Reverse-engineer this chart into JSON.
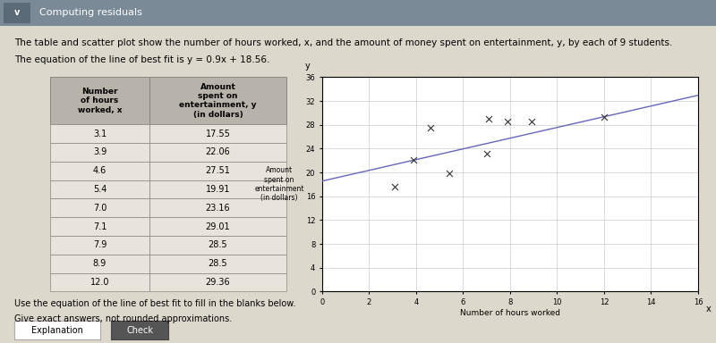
{
  "table_data": {
    "rows": [
      [
        3.1,
        17.55
      ],
      [
        3.9,
        22.06
      ],
      [
        4.6,
        27.51
      ],
      [
        5.4,
        19.91
      ],
      [
        7.0,
        23.16
      ],
      [
        7.1,
        29.01
      ],
      [
        7.9,
        28.5
      ],
      [
        8.9,
        28.5
      ],
      [
        12.0,
        29.36
      ]
    ]
  },
  "scatter": {
    "x": [
      3.1,
      3.9,
      4.6,
      5.4,
      7.0,
      7.1,
      7.9,
      8.9,
      12.0
    ],
    "y": [
      17.55,
      22.06,
      27.51,
      19.91,
      23.16,
      29.01,
      28.5,
      28.5,
      29.36
    ],
    "marker": "x",
    "color": "#333333",
    "markersize": 5
  },
  "bestfit": {
    "slope": 0.9,
    "intercept": 18.56,
    "x_start": 0,
    "x_end": 16,
    "color": "#6666bb",
    "linewidth": 1.0
  },
  "plot": {
    "xlim": [
      0,
      16
    ],
    "ylim": [
      0,
      36
    ],
    "xticks": [
      0,
      2,
      4,
      6,
      8,
      10,
      12,
      14,
      16
    ],
    "yticks": [
      0,
      4,
      8,
      12,
      16,
      20,
      24,
      28,
      32,
      36
    ],
    "xlabel": "Number of hours worked",
    "ylabel_lines": [
      "Amount",
      "spent on",
      "entertainment",
      "(in dollars)"
    ],
    "grid_color": "#cccccc",
    "grid_linewidth": 0.5
  },
  "header": {
    "bar_color": "#7a8a96",
    "chevron_color": "#5a6a76",
    "text": "Computing residuals",
    "text_color": "white",
    "chevron_label": "v"
  },
  "text": {
    "top_line": "The table and scatter plot show the number of hours worked, x, and the amount of money spent on entertainment, y, by each of 9 students.",
    "equation_line": "The equation of the line of best fit is y = 0.9x + 18.56.",
    "bottom_line1": "Use the equation of the line of best fit to fill in the blanks below.",
    "bottom_line2": "Give exact answers, not rounded approximations."
  },
  "bg_color": "#ddd8cc",
  "table_header_bg": "#b8b3aa",
  "table_cell_bg": "#e8e4dc",
  "table_border_color": "#888880"
}
